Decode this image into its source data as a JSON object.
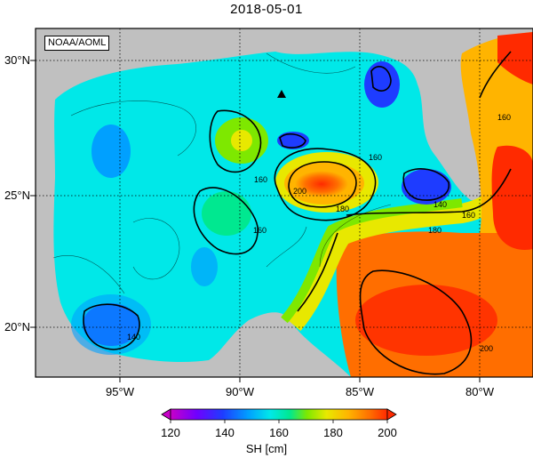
{
  "title": "2018-05-01",
  "credit": "NOAA/AOML",
  "lat_labels": [
    "30°N",
    "25°N",
    "20°N"
  ],
  "lon_labels": [
    "95°W",
    "90°W",
    "85°W",
    "80°W"
  ],
  "contour_labels": [
    "160",
    "160",
    "160",
    "160",
    "180",
    "200",
    "140",
    "180",
    "140",
    "160",
    "200"
  ],
  "colorbar": {
    "title": "SH [cm]",
    "ticks": [
      "120",
      "140",
      "160",
      "180",
      "200"
    ],
    "colors": [
      "#c800c8",
      "#7000ff",
      "#1e3cff",
      "#00a0ff",
      "#00e8e8",
      "#00e890",
      "#7ee800",
      "#e8e800",
      "#ffb400",
      "#ff6e00",
      "#ff2a00"
    ]
  },
  "colors": {
    "land": "#c0c0c0",
    "ocean_background": "#00e8e8",
    "loop_current": "#ff6e00"
  },
  "marker": "triangle"
}
